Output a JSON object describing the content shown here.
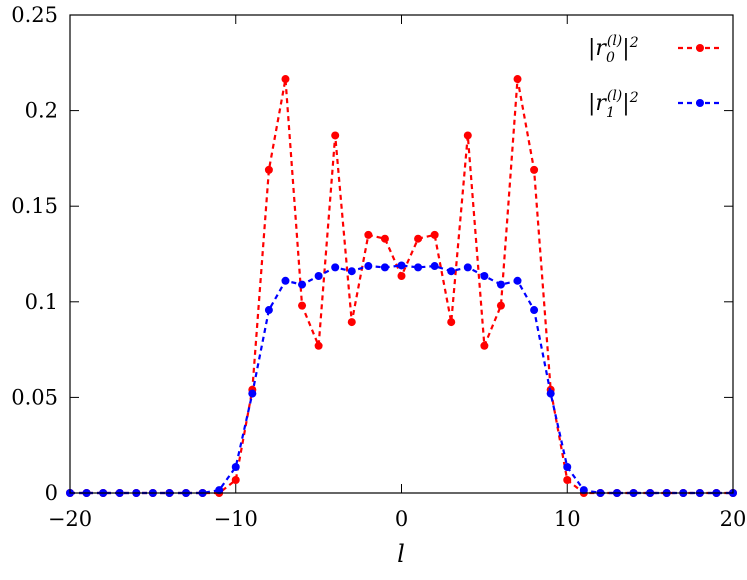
{
  "chart_data": {
    "type": "line",
    "xlabel": "l",
    "ylabel": "",
    "xlim": [
      -20,
      20
    ],
    "ylim": [
      0,
      0.25
    ],
    "xticks": [
      "−20",
      "−10",
      "0",
      "10",
      "20"
    ],
    "yticks": [
      "0",
      "0.05",
      "0.1",
      "0.15",
      "0.2",
      "0.25"
    ],
    "legend_position": "top-right",
    "x": [
      -20,
      -19,
      -18,
      -17,
      -16,
      -15,
      -14,
      -13,
      -12,
      -11,
      -10,
      -9,
      -8,
      -7,
      -6,
      -5,
      -4,
      -3,
      -2,
      -1,
      0,
      1,
      2,
      3,
      4,
      5,
      6,
      7,
      8,
      9,
      10,
      11,
      12,
      13,
      14,
      15,
      16,
      17,
      18,
      19,
      20
    ],
    "series": [
      {
        "name": "|r_0^(l)|^2",
        "color": "#ff0000",
        "values": [
          0,
          0,
          0,
          0,
          0,
          0,
          0,
          0,
          0,
          0,
          0.0068,
          0.054,
          0.169,
          0.2165,
          0.098,
          0.077,
          0.187,
          0.0894,
          0.135,
          0.133,
          0.1135,
          0.133,
          0.135,
          0.0894,
          0.187,
          0.077,
          0.098,
          0.2165,
          0.169,
          0.054,
          0.0068,
          0,
          0,
          0,
          0,
          0,
          0,
          0,
          0,
          0,
          0
        ]
      },
      {
        "name": "|r_1^(l)|^2",
        "color": "#0000ff",
        "values": [
          0,
          0,
          0,
          0,
          0,
          0,
          0,
          0,
          0,
          0.0015,
          0.0136,
          0.052,
          0.0957,
          0.111,
          0.109,
          0.1135,
          0.118,
          0.116,
          0.1187,
          0.118,
          0.119,
          0.118,
          0.1187,
          0.116,
          0.118,
          0.1135,
          0.109,
          0.111,
          0.0957,
          0.052,
          0.0136,
          0.0015,
          0,
          0,
          0,
          0,
          0,
          0,
          0,
          0,
          0
        ]
      }
    ]
  }
}
